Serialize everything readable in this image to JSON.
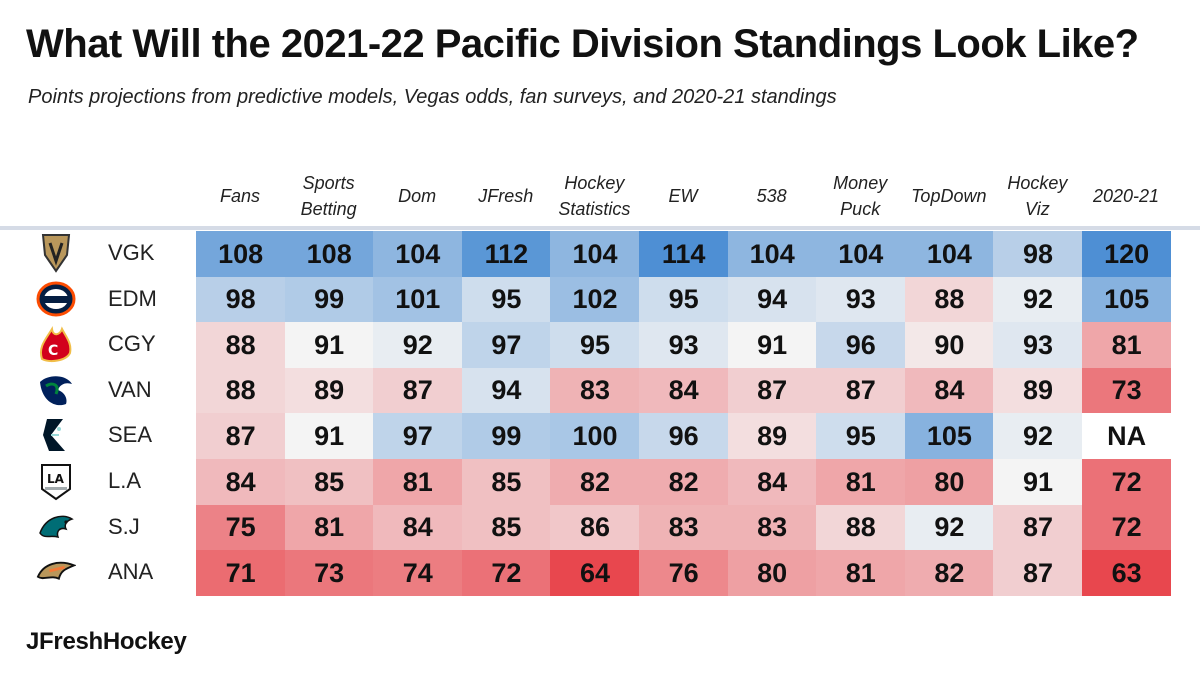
{
  "title": "What Will the 2021-22 Pacific Division Standings Look Like?",
  "subtitle": "Points projections from predictive models, Vegas odds, fan surveys, and 2020-21 standings",
  "footer": "JFreshHockey",
  "colors": {
    "high": "#4e8fd4",
    "neutral": "#f4f4f4",
    "low": "#e8474e"
  },
  "chart_data": {
    "type": "table",
    "title": "What Will the 2021-22 Pacific Division Standings Look Like?",
    "columns": [
      "Fans",
      "Sports Betting",
      "Dom",
      "JFresh",
      "Hockey Statistics",
      "EW",
      "538",
      "Money Puck",
      "TopDown",
      "Hockey Viz",
      "2020-21"
    ],
    "column_lines": [
      [
        "Fans"
      ],
      [
        "Sports",
        "Betting"
      ],
      [
        "Dom"
      ],
      [
        "JFresh"
      ],
      [
        "Hockey",
        "Statistics"
      ],
      [
        "EW"
      ],
      [
        "538"
      ],
      [
        "Money",
        "Puck"
      ],
      [
        "TopDown"
      ],
      [
        "Hockey",
        "Viz"
      ],
      [
        "2020-21"
      ]
    ],
    "teams": [
      {
        "abbr": "VGK",
        "logo": "vgk-logo-icon",
        "values": [
          108,
          108,
          104,
          112,
          104,
          114,
          104,
          104,
          104,
          98,
          120
        ]
      },
      {
        "abbr": "EDM",
        "logo": "edm-logo-icon",
        "values": [
          98,
          99,
          101,
          95,
          102,
          95,
          94,
          93,
          88,
          92,
          105
        ]
      },
      {
        "abbr": "CGY",
        "logo": "cgy-logo-icon",
        "values": [
          88,
          91,
          92,
          97,
          95,
          93,
          91,
          96,
          90,
          93,
          81
        ]
      },
      {
        "abbr": "VAN",
        "logo": "van-logo-icon",
        "values": [
          88,
          89,
          87,
          94,
          83,
          84,
          87,
          87,
          84,
          89,
          73
        ]
      },
      {
        "abbr": "SEA",
        "logo": "sea-logo-icon",
        "values": [
          87,
          91,
          97,
          99,
          100,
          96,
          89,
          95,
          105,
          92,
          "NA"
        ]
      },
      {
        "abbr": "L.A",
        "logo": "la-logo-icon",
        "values": [
          84,
          85,
          81,
          85,
          82,
          82,
          84,
          81,
          80,
          91,
          72
        ]
      },
      {
        "abbr": "S.J",
        "logo": "sj-logo-icon",
        "values": [
          75,
          81,
          84,
          85,
          86,
          83,
          83,
          88,
          92,
          87,
          72
        ]
      },
      {
        "abbr": "ANA",
        "logo": "ana-logo-icon",
        "values": [
          71,
          73,
          74,
          72,
          64,
          76,
          80,
          81,
          82,
          87,
          63
        ]
      }
    ]
  }
}
